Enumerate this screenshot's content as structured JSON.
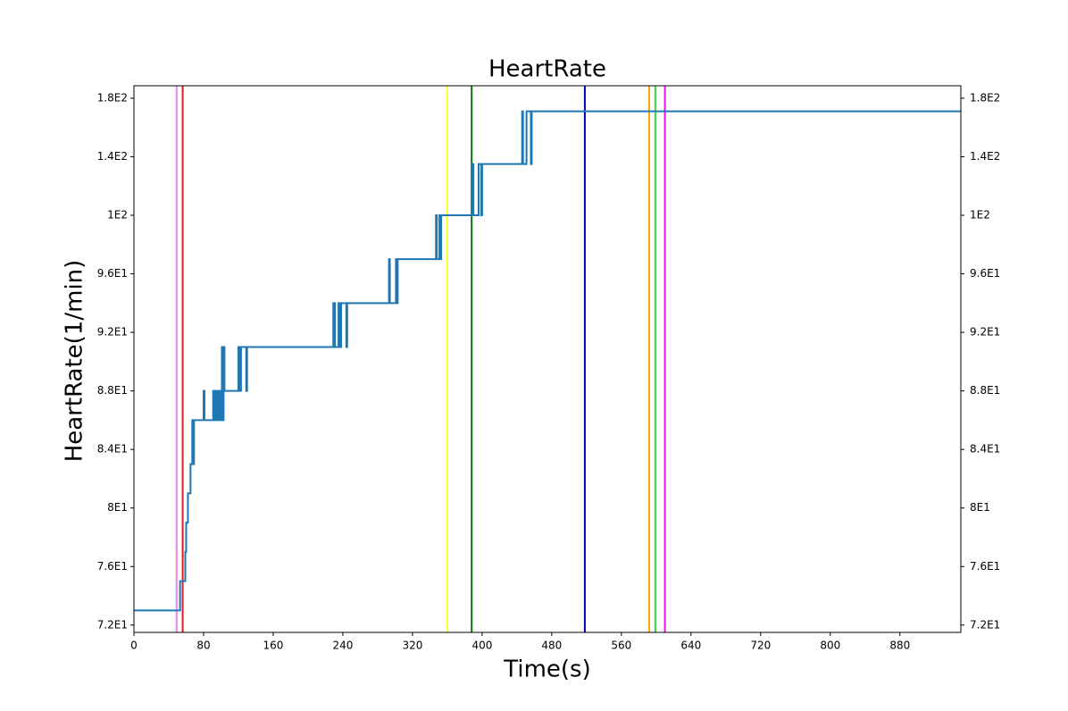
{
  "chart_data": {
    "type": "line",
    "title": "HeartRate",
    "x_label": "Time(s)",
    "y_label": "HeartRate(1/min)",
    "drawstyle": "steps-post",
    "x": [
      0,
      53,
      59,
      60,
      62,
      65,
      67,
      68,
      69,
      80,
      81,
      91,
      92,
      94,
      96,
      97,
      99,
      101,
      102,
      103,
      104,
      120,
      121,
      123,
      129,
      130,
      229,
      231,
      235,
      237,
      238,
      244,
      245,
      293,
      294,
      301,
      302,
      303,
      347,
      348,
      351,
      352,
      353,
      389,
      390,
      396,
      399,
      400,
      446,
      447,
      451,
      456,
      457,
      950
    ],
    "series": [
      {
        "name": "HeartRate",
        "color": "#1f77b4",
        "values": [
          73,
          75,
          77,
          79,
          81,
          83,
          86,
          83,
          86,
          88,
          86,
          88,
          86,
          88,
          86,
          88,
          86,
          91,
          86,
          91,
          88,
          91,
          88,
          91,
          88,
          91,
          94,
          91,
          94,
          91,
          94,
          91,
          94,
          97,
          94,
          97,
          94,
          97,
          100,
          97,
          100,
          97,
          100,
          135,
          100,
          135,
          100,
          135,
          171,
          135,
          171,
          135,
          171,
          171
        ]
      }
    ],
    "vlines": [
      {
        "x": 49,
        "color": "#ee82ee"
      },
      {
        "x": 56,
        "color": "#d62020"
      },
      {
        "x": 360,
        "color": "#ffff33"
      },
      {
        "x": 388,
        "color": "#107010"
      },
      {
        "x": 518,
        "color": "#0000b0"
      },
      {
        "x": 592,
        "color": "#ffa500"
      },
      {
        "x": 599,
        "color": "#33dd33"
      },
      {
        "x": 610,
        "color": "#ee11ee"
      }
    ],
    "xlim": [
      0,
      950
    ],
    "xticks": [
      0,
      80,
      160,
      240,
      320,
      400,
      480,
      560,
      640,
      720,
      800,
      880
    ],
    "ylim": [
      71.5,
      188.5
    ],
    "yscale": "piecewise-ticks",
    "yticks": [
      {
        "value": 72,
        "label": "7.2E1"
      },
      {
        "value": 76,
        "label": "7.6E1"
      },
      {
        "value": 80,
        "label": "8E1"
      },
      {
        "value": 84,
        "label": "8.4E1"
      },
      {
        "value": 88,
        "label": "8.8E1"
      },
      {
        "value": 92,
        "label": "9.2E1"
      },
      {
        "value": 96,
        "label": "9.6E1"
      },
      {
        "value": 100,
        "label": "1E2"
      },
      {
        "value": 140,
        "label": "1.4E2"
      },
      {
        "value": 180,
        "label": "1.8E2"
      }
    ],
    "right_axis_labels": true
  }
}
